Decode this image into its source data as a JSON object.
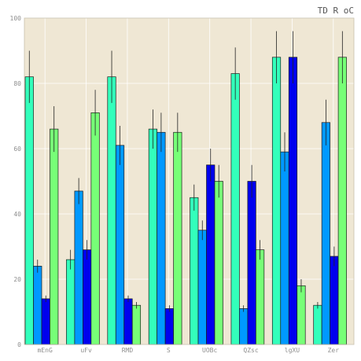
{
  "chart_data": {
    "type": "bar",
    "title": "TD R oC",
    "xlabel": "",
    "ylabel": "",
    "categories": [
      "mEnG",
      "uFv",
      "RMD",
      "S",
      "UOBc",
      "QZsc",
      "lgXU",
      "Zer"
    ],
    "ylim": [
      0,
      100
    ],
    "yticks": [
      0,
      20,
      40,
      60,
      80,
      100
    ],
    "grid": true,
    "legend": "none",
    "colors": [
      "#33ffbb",
      "#0099ff",
      "#0000ee",
      "#77ff77"
    ],
    "series": [
      {
        "values": [
          82,
          26,
          82,
          66,
          45,
          83,
          88,
          12
        ],
        "errors": [
          8,
          3,
          8,
          6,
          4,
          8,
          8,
          1
        ]
      },
      {
        "values": [
          24,
          47,
          61,
          65,
          35,
          11,
          59,
          68
        ],
        "errors": [
          2,
          4,
          6,
          6,
          3,
          1,
          6,
          7
        ]
      },
      {
        "values": [
          14,
          29,
          14,
          11,
          55,
          50,
          88,
          27
        ],
        "errors": [
          1,
          3,
          1,
          1,
          5,
          5,
          8,
          3
        ]
      },
      {
        "values": [
          66,
          71,
          12,
          65,
          50,
          29,
          18,
          88
        ],
        "errors": [
          7,
          7,
          1,
          6,
          5,
          3,
          2,
          8
        ]
      }
    ]
  }
}
